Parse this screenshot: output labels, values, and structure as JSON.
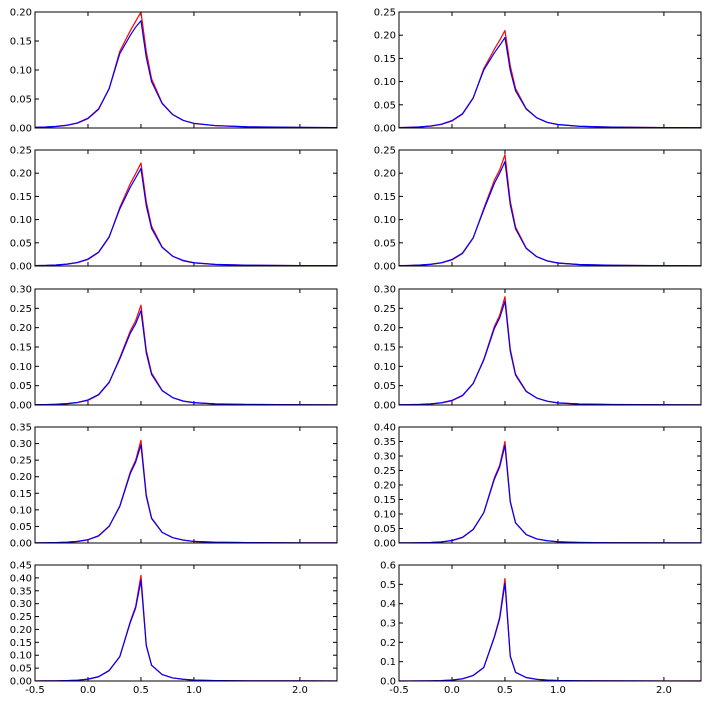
{
  "chart_data": {
    "type": "line",
    "layout": {
      "rows": 5,
      "cols": 2
    },
    "xlim": [
      -0.5,
      2.35
    ],
    "xticks": [
      "-0.5",
      "0.0",
      "0.5",
      "1.0",
      "2.0"
    ],
    "x": [
      -0.5,
      -0.4,
      -0.3,
      -0.2,
      -0.1,
      0.0,
      0.1,
      0.2,
      0.3,
      0.4,
      0.45,
      0.5,
      0.55,
      0.6,
      0.7,
      0.8,
      0.9,
      1.0,
      1.2,
      1.5,
      2.0,
      2.35
    ],
    "series_colors": [
      "#ff0000",
      "#0000ff"
    ],
    "panels": [
      {
        "ylim": [
          0,
          0.2
        ],
        "yticks": [
          "0.00",
          "0.05",
          "0.10",
          "0.15",
          "0.20"
        ],
        "series": [
          {
            "values": [
              0.001,
              0.0016,
              0.0026,
              0.0045,
              0.0083,
              0.016,
              0.032,
              0.068,
              0.132,
              0.168,
              0.184,
              0.2,
              0.132,
              0.085,
              0.043,
              0.023,
              0.013,
              0.0078,
              0.004,
              0.002,
              0.001,
              0.0006
            ]
          },
          {
            "values": [
              0.0011,
              0.0017,
              0.0028,
              0.0048,
              0.0088,
              0.017,
              0.033,
              0.068,
              0.128,
              0.16,
              0.174,
              0.185,
              0.122,
              0.08,
              0.042,
              0.023,
              0.013,
              0.0081,
              0.0042,
              0.0021,
              0.0011,
              0.0007
            ]
          }
        ]
      },
      {
        "ylim": [
          0,
          0.25
        ],
        "yticks": [
          "0.00",
          "0.05",
          "0.10",
          "0.15",
          "0.20",
          "0.25"
        ],
        "series": [
          {
            "values": [
              0.0009,
              0.0014,
              0.0023,
              0.0041,
              0.0077,
              0.015,
              0.03,
              0.064,
              0.128,
              0.17,
              0.189,
              0.21,
              0.134,
              0.085,
              0.042,
              0.022,
              0.012,
              0.0072,
              0.0036,
              0.0018,
              0.0009,
              0.0005
            ]
          },
          {
            "values": [
              0.001,
              0.0015,
              0.0025,
              0.0044,
              0.0082,
              0.016,
              0.031,
              0.065,
              0.125,
              0.162,
              0.178,
              0.195,
              0.124,
              0.08,
              0.041,
              0.022,
              0.012,
              0.0075,
              0.0038,
              0.0019,
              0.001,
              0.0006
            ]
          }
        ]
      },
      {
        "ylim": [
          0,
          0.25
        ],
        "yticks": [
          "0.00",
          "0.05",
          "0.10",
          "0.15",
          "0.20",
          "0.25"
        ],
        "series": [
          {
            "values": [
              0.0008,
              0.0012,
              0.0021,
              0.0038,
              0.0072,
              0.014,
              0.029,
              0.062,
              0.126,
              0.178,
              0.199,
              0.222,
              0.139,
              0.086,
              0.041,
              0.021,
              0.011,
              0.0066,
              0.0033,
              0.0016,
              0.0008,
              0.0005
            ]
          },
          {
            "values": [
              0.0009,
              0.0013,
              0.0023,
              0.0041,
              0.0077,
              0.015,
              0.03,
              0.063,
              0.123,
              0.17,
              0.19,
              0.21,
              0.13,
              0.081,
              0.04,
              0.021,
              0.012,
              0.007,
              0.0035,
              0.0017,
              0.0009,
              0.0005
            ]
          }
        ]
      },
      {
        "ylim": [
          0,
          0.25
        ],
        "yticks": [
          "0.00",
          "0.05",
          "0.10",
          "0.15",
          "0.20",
          "0.25"
        ],
        "series": [
          {
            "values": [
              0.0007,
              0.0011,
              0.0019,
              0.0035,
              0.0067,
              0.013,
              0.027,
              0.06,
              0.124,
              0.185,
              0.207,
              0.24,
              0.14,
              0.084,
              0.039,
              0.02,
              0.011,
              0.0062,
              0.003,
              0.0015,
              0.0007,
              0.0004
            ]
          },
          {
            "values": [
              0.0008,
              0.0012,
              0.0021,
              0.0038,
              0.0072,
              0.014,
              0.028,
              0.061,
              0.121,
              0.178,
              0.2,
              0.225,
              0.132,
              0.08,
              0.038,
              0.02,
              0.011,
              0.0065,
              0.0032,
              0.0016,
              0.0008,
              0.0005
            ]
          }
        ]
      },
      {
        "ylim": [
          0,
          0.3
        ],
        "yticks": [
          "0.00",
          "0.05",
          "0.10",
          "0.15",
          "0.20",
          "0.25",
          "0.30"
        ],
        "series": [
          {
            "values": [
              0.0006,
              0.001,
              0.0017,
              0.0032,
              0.0062,
              0.012,
              0.026,
              0.058,
              0.122,
              0.192,
              0.218,
              0.258,
              0.142,
              0.083,
              0.038,
              0.019,
              0.01,
              0.0058,
              0.0028,
              0.0014,
              0.0007,
              0.0004
            ]
          },
          {
            "values": [
              0.0007,
              0.0011,
              0.0019,
              0.0035,
              0.0067,
              0.013,
              0.027,
              0.059,
              0.119,
              0.186,
              0.21,
              0.244,
              0.135,
              0.079,
              0.037,
              0.019,
              0.01,
              0.0061,
              0.003,
              0.0015,
              0.0007,
              0.0004
            ]
          }
        ]
      },
      {
        "ylim": [
          0,
          0.3
        ],
        "yticks": [
          "0.00",
          "0.05",
          "0.10",
          "0.15",
          "0.20",
          "0.25",
          "0.30"
        ],
        "series": [
          {
            "values": [
              0.0005,
              0.0008,
              0.0014,
              0.0027,
              0.0054,
              0.011,
              0.024,
              0.055,
              0.118,
              0.203,
              0.232,
              0.28,
              0.145,
              0.08,
              0.036,
              0.018,
              0.0095,
              0.0052,
              0.0025,
              0.0012,
              0.0006,
              0.0003
            ]
          },
          {
            "values": [
              0.0006,
              0.0009,
              0.0016,
              0.003,
              0.0058,
              0.012,
              0.025,
              0.056,
              0.116,
              0.198,
              0.225,
              0.268,
              0.139,
              0.077,
              0.035,
              0.018,
              0.0098,
              0.0055,
              0.0026,
              0.0013,
              0.0006,
              0.0004
            ]
          }
        ]
      },
      {
        "ylim": [
          0,
          0.35
        ],
        "yticks": [
          "0.00",
          "0.05",
          "0.10",
          "0.15",
          "0.20",
          "0.25",
          "0.30",
          "0.35"
        ],
        "series": [
          {
            "values": [
              0.0004,
              0.0006,
              0.0011,
              0.0022,
              0.0045,
              0.0095,
              0.021,
              0.05,
              0.112,
              0.215,
              0.25,
              0.31,
              0.146,
              0.076,
              0.032,
              0.016,
              0.0085,
              0.0046,
              0.0022,
              0.0011,
              0.0005,
              0.0003
            ]
          },
          {
            "values": [
              0.0005,
              0.0007,
              0.0013,
              0.0024,
              0.0049,
              0.01,
              0.022,
              0.051,
              0.11,
              0.21,
              0.244,
              0.296,
              0.141,
              0.074,
              0.032,
              0.016,
              0.0088,
              0.0048,
              0.0023,
              0.0011,
              0.0006,
              0.0003
            ]
          }
        ]
      },
      {
        "ylim": [
          0,
          0.4
        ],
        "yticks": [
          "0.00",
          "0.05",
          "0.10",
          "0.15",
          "0.20",
          "0.25",
          "0.30",
          "0.35",
          "0.40"
        ],
        "series": [
          {
            "values": [
              0.0003,
              0.0005,
              0.0009,
              0.0018,
              0.0037,
              0.0082,
              0.019,
              0.046,
              0.105,
              0.225,
              0.268,
              0.35,
              0.145,
              0.07,
              0.029,
              0.014,
              0.0075,
              0.004,
              0.0019,
              0.0009,
              0.0004,
              0.0002
            ]
          },
          {
            "values": [
              0.0004,
              0.0006,
              0.001,
              0.002,
              0.004,
              0.0086,
              0.02,
              0.047,
              0.104,
              0.22,
              0.262,
              0.336,
              0.141,
              0.069,
              0.029,
              0.014,
              0.0078,
              0.0042,
              0.002,
              0.001,
              0.0005,
              0.0003
            ]
          }
        ]
      },
      {
        "ylim": [
          0,
          0.45
        ],
        "yticks": [
          "0.00",
          "0.05",
          "0.10",
          "0.15",
          "0.20",
          "0.25",
          "0.30",
          "0.35",
          "0.40",
          "0.45"
        ],
        "series": [
          {
            "values": [
              0.0002,
              0.0004,
              0.0007,
              0.0014,
              0.003,
              0.0068,
              0.016,
              0.04,
              0.095,
              0.232,
              0.29,
              0.41,
              0.14,
              0.062,
              0.025,
              0.012,
              0.0065,
              0.0034,
              0.0016,
              0.0008,
              0.0004,
              0.0002
            ]
          },
          {
            "values": [
              0.0003,
              0.0004,
              0.0008,
              0.0016,
              0.0032,
              0.0072,
              0.017,
              0.041,
              0.094,
              0.228,
              0.283,
              0.39,
              0.137,
              0.061,
              0.025,
              0.012,
              0.0068,
              0.0036,
              0.0017,
              0.0008,
              0.0004,
              0.0002
            ]
          }
        ]
      },
      {
        "ylim": [
          0,
          0.6
        ],
        "yticks": [
          "0.0",
          "0.1",
          "0.2",
          "0.3",
          "0.4",
          "0.5",
          "0.6"
        ],
        "series": [
          {
            "values": [
              0.0001,
              0.0002,
              0.0004,
              0.0008,
              0.0018,
              0.0045,
              0.011,
              0.028,
              0.07,
              0.23,
              0.33,
              0.53,
              0.13,
              0.045,
              0.018,
              0.0085,
              0.0045,
              0.0024,
              0.0011,
              0.0005,
              0.0002,
              0.0001
            ]
          },
          {
            "values": [
              0.0002,
              0.0003,
              0.0005,
              0.0009,
              0.002,
              0.0048,
              0.012,
              0.029,
              0.07,
              0.226,
              0.322,
              0.505,
              0.127,
              0.045,
              0.018,
              0.0088,
              0.0047,
              0.0025,
              0.0012,
              0.0006,
              0.0003,
              0.0002
            ]
          }
        ]
      }
    ]
  }
}
